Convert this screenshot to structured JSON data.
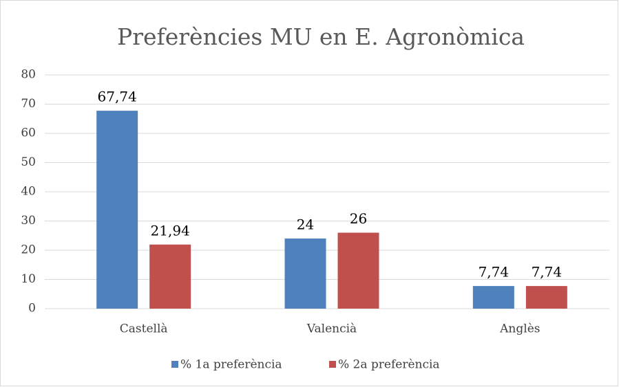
{
  "chart_data": {
    "type": "bar",
    "title": "Preferències MU en E. Agronòmica",
    "categories": [
      "Castellà",
      "Valencià",
      "Anglès"
    ],
    "series": [
      {
        "name": "% 1a preferència",
        "color": "#4f81bd",
        "values": [
          67.74,
          24,
          7.74
        ],
        "value_labels": [
          "67,74",
          "24",
          "7,74"
        ]
      },
      {
        "name": "% 2a preferència",
        "color": "#c0504d",
        "values": [
          21.94,
          26,
          7.74
        ],
        "value_labels": [
          "21,94",
          "26",
          "7,74"
        ]
      }
    ],
    "ylim": [
      0,
      80
    ],
    "yticks": [
      0,
      10,
      20,
      30,
      40,
      50,
      60,
      70,
      80
    ],
    "grid": true,
    "legend": "bottom"
  }
}
